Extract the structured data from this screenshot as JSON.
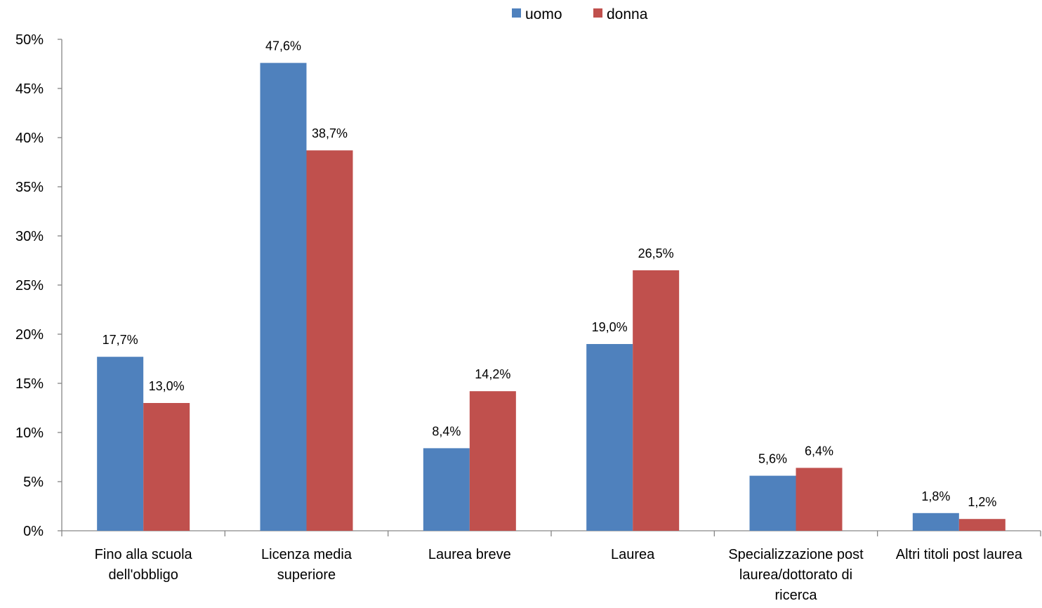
{
  "chart_data": {
    "type": "bar",
    "title": "",
    "xlabel": "",
    "ylabel": "",
    "ylim": [
      0,
      50
    ],
    "yticks": [
      "0%",
      "5%",
      "10%",
      "15%",
      "20%",
      "25%",
      "30%",
      "35%",
      "40%",
      "45%",
      "50%"
    ],
    "grid": false,
    "legend_position": "top",
    "categories": [
      [
        "Fino alla scuola",
        "dell'obbligo"
      ],
      [
        "Licenza media",
        "superiore"
      ],
      [
        "Laurea breve"
      ],
      [
        "Laurea"
      ],
      [
        "Specializzazione post",
        "laurea/dottorato di",
        "ricerca"
      ],
      [
        "Altri titoli post laurea"
      ]
    ],
    "series": [
      {
        "name": "uomo",
        "color": "#4F81BD",
        "values": [
          17.7,
          47.6,
          8.4,
          19.0,
          5.6,
          1.8
        ],
        "labels": [
          "17,7%",
          "47,6%",
          "8,4%",
          "19,0%",
          "5,6%",
          "1,8%"
        ]
      },
      {
        "name": "donna",
        "color": "#C0504D",
        "values": [
          13.0,
          38.7,
          14.2,
          26.5,
          6.4,
          1.2
        ],
        "labels": [
          "13,0%",
          "38,7%",
          "14,2%",
          "26,5%",
          "6,4%",
          "1,2%"
        ]
      }
    ]
  }
}
